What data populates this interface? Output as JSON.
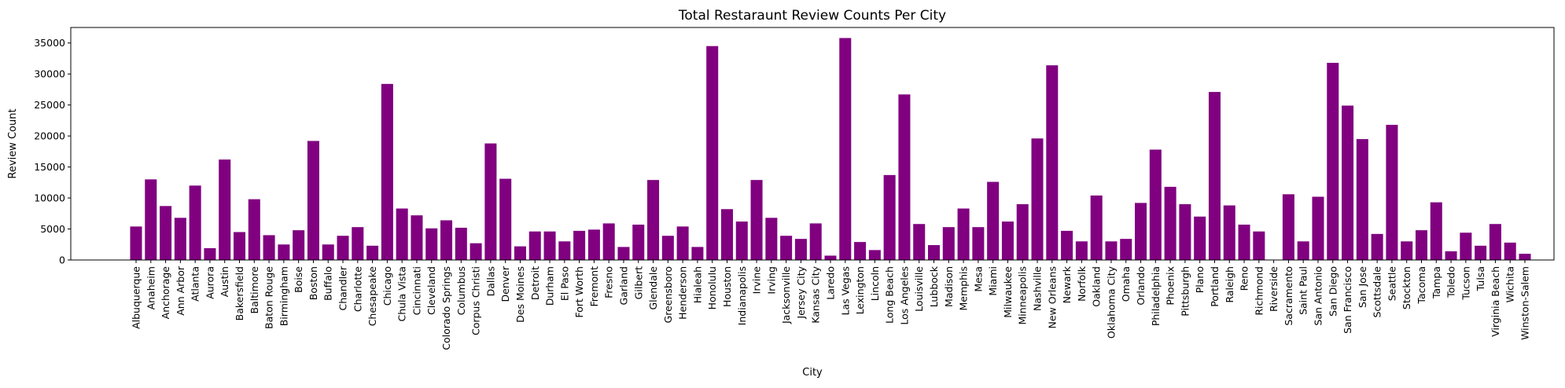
{
  "chart_data": {
    "type": "bar",
    "title": "Total Restaraunt Review Counts Per City",
    "xlabel": "City",
    "ylabel": "Review Count",
    "ylim": [
      0,
      37500
    ],
    "yticks": [
      0,
      5000,
      10000,
      15000,
      20000,
      25000,
      30000,
      35000
    ],
    "bar_color": "#800080",
    "grid": false,
    "categories": [
      "Albuquerque",
      "Anaheim",
      "Anchorage",
      "Ann Arbor",
      "Atlanta",
      "Aurora",
      "Austin",
      "Bakersfield",
      "Baltimore",
      "Baton Rouge",
      "Birmingham",
      "Boise",
      "Boston",
      "Buffalo",
      "Chandler",
      "Charlotte",
      "Chesapeake",
      "Chicago",
      "Chula Vista",
      "Cincinnati",
      "Cleveland",
      "Colorado Springs",
      "Columbus",
      "Corpus Christi",
      "Dallas",
      "Denver",
      "Des Moines",
      "Detroit",
      "Durham",
      "El Paso",
      "Fort Worth",
      "Fremont",
      "Fresno",
      "Garland",
      "Gilbert",
      "Glendale",
      "Greensboro",
      "Henderson",
      "Hialeah",
      "Honolulu",
      "Houston",
      "Indianapolis",
      "Irvine",
      "Irving",
      "Jacksonville",
      "Jersey City",
      "Kansas City",
      "Laredo",
      "Las Vegas",
      "Lexington",
      "Lincoln",
      "Long Beach",
      "Los Angeles",
      "Louisville",
      "Lubbock",
      "Madison",
      "Memphis",
      "Mesa",
      "Miami",
      "Milwaukee",
      "Minneapolis",
      "Nashville",
      "New Orleans",
      "Newark",
      "Norfolk",
      "Oakland",
      "Oklahoma City",
      "Omaha",
      "Orlando",
      "Philadelphia",
      "Phoenix",
      "Pittsburgh",
      "Plano",
      "Portland",
      "Raleigh",
      "Reno",
      "Richmond",
      "Riverside",
      "Sacramento",
      "Saint Paul",
      "San Antonio",
      "San Diego",
      "San Francisco",
      "San Jose",
      "Scottsdale",
      "Seattle",
      "Stockton",
      "Tacoma",
      "Tampa",
      "Toledo",
      "Tucson",
      "Tulsa",
      "Virginia Beach",
      "Wichita",
      "Winston-Salem"
    ],
    "values": [
      5400,
      13000,
      8700,
      6800,
      12000,
      1900,
      16200,
      4500,
      9800,
      4000,
      2500,
      4800,
      19200,
      2500,
      3900,
      5300,
      2300,
      28400,
      8300,
      7200,
      5100,
      6400,
      5200,
      2700,
      18800,
      13100,
      2200,
      4600,
      4600,
      3000,
      4700,
      4900,
      5900,
      2100,
      5700,
      12900,
      3900,
      5400,
      2100,
      34500,
      8200,
      6200,
      12900,
      6800,
      3900,
      3400,
      5900,
      700,
      35800,
      2900,
      1600,
      13700,
      26700,
      5800,
      2400,
      5300,
      8300,
      5300,
      12600,
      6200,
      9000,
      19600,
      31400,
      4700,
      3000,
      10400,
      3000,
      3400,
      9200,
      17800,
      11800,
      9000,
      7000,
      27100,
      8800,
      5700,
      4600,
      0,
      10600,
      3000,
      10200,
      31800,
      24900,
      19500,
      4200,
      21800,
      3000,
      4800,
      9300,
      1400,
      4400,
      2300,
      5800,
      2800,
      1000
    ]
  }
}
